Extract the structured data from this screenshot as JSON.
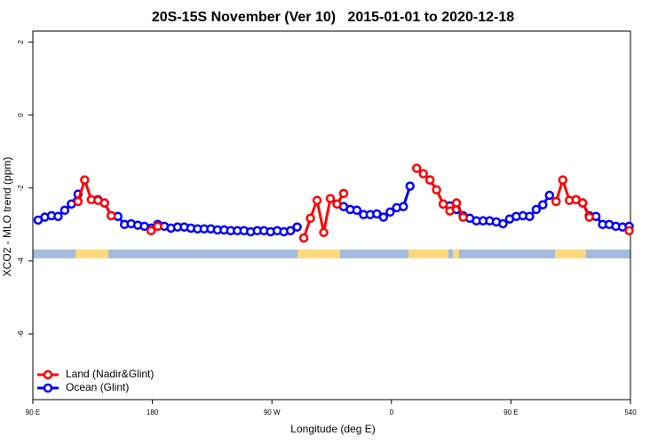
{
  "chart_data": {
    "type": "line",
    "title": "20S-15S November (Ver 10)   2015-01-01 to 2020-12-18",
    "x_label": "Longitude (deg E)",
    "y_label": "XCO2 - MLO trend (ppm)",
    "x": [
      94,
      99,
      104,
      109,
      114,
      119,
      124,
      129,
      134,
      139,
      144,
      149,
      154,
      159,
      164,
      169,
      174,
      179,
      184,
      189,
      194,
      199,
      204,
      209,
      214,
      219,
      224,
      229,
      234,
      239,
      244,
      249,
      254,
      259,
      264,
      269,
      274,
      279,
      284,
      289,
      294,
      299,
      304,
      309,
      314,
      319,
      324,
      329,
      334,
      339,
      344,
      349,
      354,
      359,
      364,
      369,
      374,
      379,
      384,
      389,
      394,
      399,
      404,
      409,
      414,
      419,
      424,
      429,
      434,
      439,
      444,
      449,
      454,
      459,
      464,
      469,
      474,
      479,
      484,
      489,
      494,
      499,
      504,
      509,
      514,
      519,
      524,
      529,
      534,
      539
    ],
    "series": [
      {
        "name": "Land (Nadir&Glint)",
        "color": "#ff0000",
        "values": [
          null,
          null,
          null,
          null,
          null,
          null,
          -2.37,
          -1.78,
          -2.32,
          -2.34,
          -2.41,
          -2.76,
          null,
          null,
          null,
          null,
          null,
          -3.17,
          -3.05,
          null,
          null,
          null,
          null,
          null,
          null,
          null,
          null,
          null,
          null,
          null,
          null,
          null,
          null,
          null,
          null,
          null,
          null,
          null,
          null,
          null,
          -3.37,
          -2.83,
          -2.34,
          -3.22,
          -2.29,
          -2.44,
          -2.15,
          null,
          null,
          null,
          null,
          null,
          null,
          null,
          null,
          null,
          null,
          -1.46,
          -1.61,
          -1.78,
          -2.05,
          -2.44,
          -2.63,
          -2.41,
          -2.8,
          null,
          null,
          null,
          null,
          null,
          null,
          null,
          null,
          null,
          null,
          null,
          null,
          null,
          -2.37,
          -1.78,
          -2.34,
          -2.32,
          -2.41,
          -2.8,
          null,
          null,
          null,
          null,
          null,
          -3.17
        ]
      },
      {
        "name": "Ocean (Glint)",
        "color": "#0000ff",
        "values": [
          -2.88,
          -2.8,
          -2.76,
          -2.78,
          -2.61,
          -2.44,
          -2.17,
          null,
          null,
          -2.32,
          -2.41,
          -2.76,
          -2.78,
          -3.0,
          -2.98,
          -3.02,
          -3.05,
          -3.1,
          -3.0,
          -3.05,
          -3.1,
          -3.07,
          -3.07,
          -3.1,
          -3.12,
          -3.12,
          -3.12,
          -3.15,
          -3.15,
          -3.17,
          -3.17,
          -3.17,
          -3.2,
          -3.17,
          -3.17,
          -3.2,
          -3.17,
          -3.2,
          -3.17,
          -3.07,
          null,
          null,
          null,
          null,
          null,
          null,
          -2.51,
          -2.59,
          -2.61,
          -2.73,
          -2.73,
          -2.71,
          -2.8,
          -2.66,
          -2.54,
          -2.51,
          -1.95,
          null,
          null,
          -1.78,
          null,
          -2.44,
          -2.49,
          -2.59,
          -2.76,
          -2.83,
          -2.9,
          -2.9,
          -2.9,
          -2.93,
          -2.98,
          -2.85,
          -2.78,
          -2.76,
          -2.78,
          -2.59,
          -2.46,
          -2.2,
          null,
          null,
          null,
          -2.32,
          -2.41,
          -2.76,
          -2.78,
          -3.0,
          -3.0,
          -3.05,
          -3.07,
          -3.05
        ]
      }
    ],
    "xlim": [
      90,
      540
    ],
    "xticks": [
      {
        "value": 90,
        "label": "90 E"
      },
      180,
      {
        "value": 270,
        "label": "90 W"
      },
      {
        "value": 360,
        "label": "0"
      },
      {
        "value": 450,
        "label": "90 E"
      },
      540
    ],
    "ylim": [
      -7.8,
      2.3
    ],
    "yticks": [
      -6,
      -4,
      -2,
      0,
      2
    ],
    "grid": false,
    "legend": "bottom-left"
  }
}
